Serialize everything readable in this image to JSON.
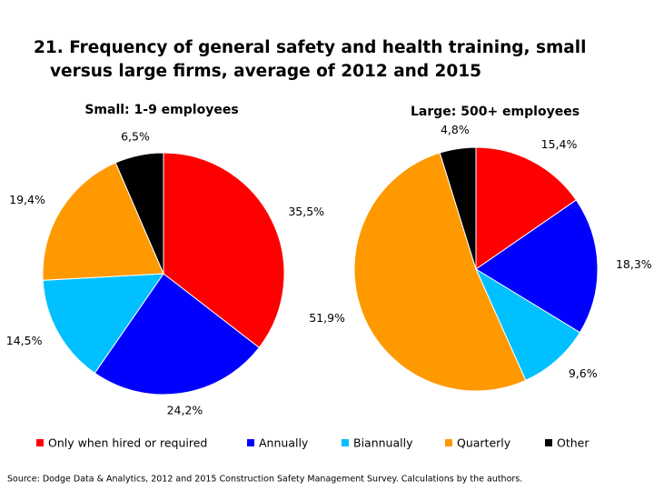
{
  "title": "21. Frequency of general safety and health training, small versus large firms,  average of 2012 and 2015",
  "categories": [
    "Only when hired or required",
    "Annually",
    "Biannually",
    "Quarterly",
    "Other"
  ],
  "colors": [
    "#ff0000",
    "#0000ff",
    "#00c0ff",
    "#ff9900",
    "#000000"
  ],
  "chart_data": [
    {
      "type": "pie",
      "title": "Small: 1-9 employees",
      "values": [
        35.5,
        24.2,
        14.5,
        19.4,
        6.5
      ],
      "value_labels": [
        "35,5%",
        "24,2%",
        "14,5%",
        "19,4%",
        "6,5%"
      ]
    },
    {
      "type": "pie",
      "title": "Large: 500+ employees",
      "values": [
        15.4,
        18.3,
        9.6,
        51.9,
        4.8
      ],
      "value_labels": [
        "15,4%",
        "18,3%",
        "9,6%",
        "51,9%",
        "4,8%"
      ]
    }
  ],
  "source": "Source: Dodge Data & Analytics, 2012 and 2015 Construction Safety Management Survey. Calculations by the authors."
}
